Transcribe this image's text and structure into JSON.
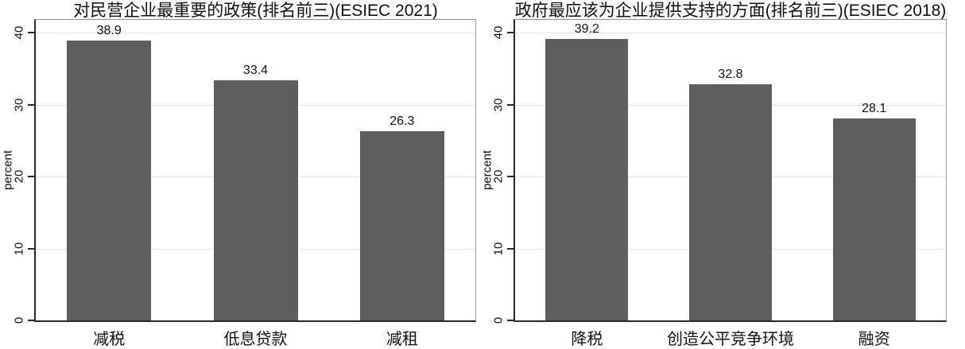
{
  "colors": {
    "bar": "#5e5e60",
    "gridline": "#e3e3e3",
    "axis": "#2a2a2a",
    "box": "#9c9c9c",
    "text": "#111111",
    "background": "#ffffff"
  },
  "chart_data": [
    {
      "type": "bar",
      "title": "对民营企业最重要的政策(排名前三)(ESIEC 2021)",
      "xlabel": "",
      "ylabel": "percent",
      "categories": [
        "减税",
        "低息贷款",
        "减租"
      ],
      "values": [
        38.9,
        33.4,
        26.3
      ],
      "value_labels": [
        "38.9",
        "33.4",
        "26.3"
      ],
      "yticks": [
        0,
        10,
        20,
        30,
        40
      ],
      "ytick_labels": [
        "0",
        "10",
        "20",
        "30",
        "40"
      ],
      "ylim": [
        0,
        41.8
      ],
      "grid": true,
      "legend": "none",
      "bar_color": "#5e5e60"
    },
    {
      "type": "bar",
      "title": "政府最应该为企业提供支持的方面(排名前三)(ESIEC 2018)",
      "xlabel": "",
      "ylabel": "percent",
      "categories": [
        "降税",
        "创造公平竞争环境",
        "融资"
      ],
      "values": [
        39.2,
        32.8,
        28.1
      ],
      "value_labels": [
        "39.2",
        "32.8",
        "28.1"
      ],
      "yticks": [
        0,
        10,
        20,
        30,
        40
      ],
      "ytick_labels": [
        "0",
        "10",
        "20",
        "30",
        "40"
      ],
      "ylim": [
        0,
        41.8
      ],
      "grid": true,
      "legend": "none",
      "bar_color": "#5e5e60"
    }
  ]
}
